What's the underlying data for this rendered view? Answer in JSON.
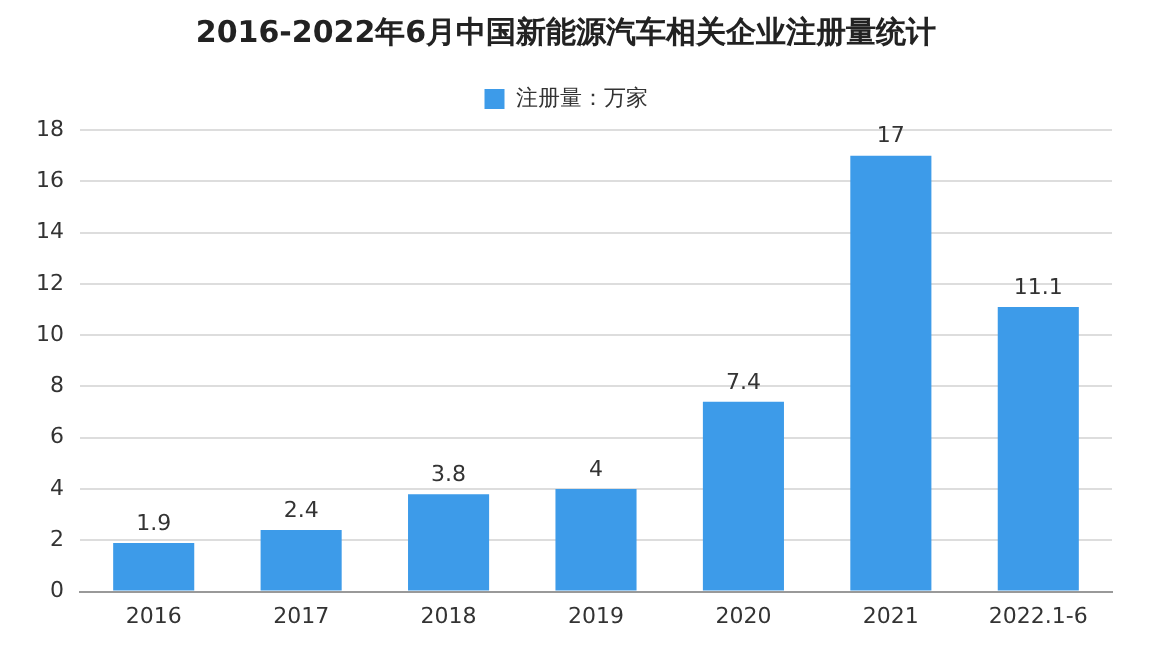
{
  "chart_data": {
    "type": "bar",
    "title": "2016-2022年6月中国新能源汽车相关企业注册量统计",
    "categories": [
      "2016",
      "2017",
      "2018",
      "2019",
      "2020",
      "2021",
      "2022.1-6"
    ],
    "series": [
      {
        "name": "注册量：万家",
        "color": "#3d9be9",
        "values": [
          1.9,
          2.4,
          3.8,
          4,
          7.4,
          17,
          11.1
        ]
      }
    ],
    "ylim": [
      0,
      18
    ],
    "yticks": [
      0,
      2,
      4,
      6,
      8,
      10,
      12,
      14,
      16,
      18
    ],
    "grid": "y",
    "legend": "top",
    "data_labels": true
  }
}
